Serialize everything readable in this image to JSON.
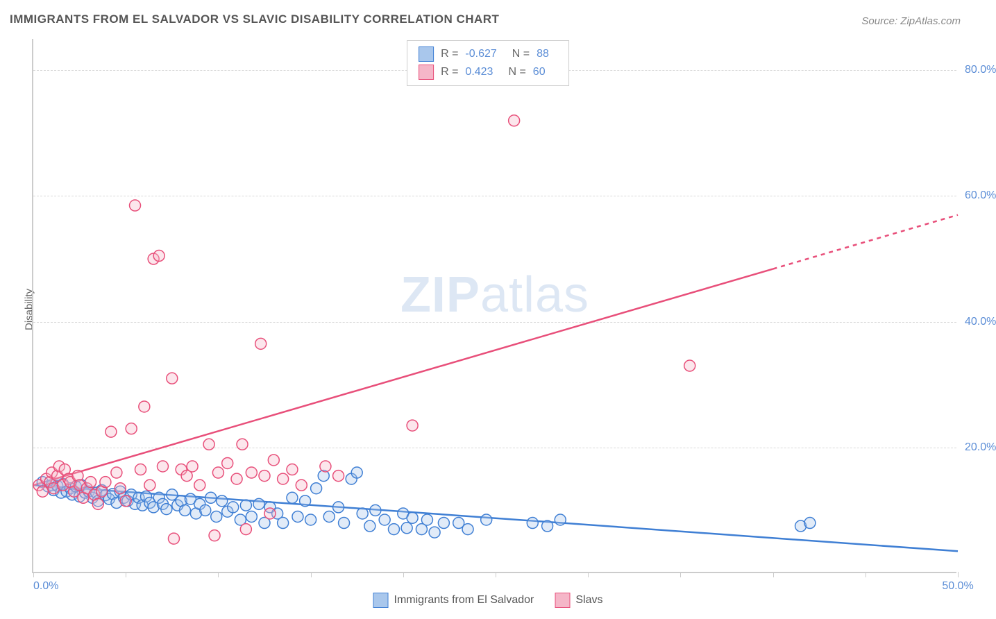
{
  "title": "IMMIGRANTS FROM EL SALVADOR VS SLAVIC DISABILITY CORRELATION CHART",
  "source_prefix": "Source: ",
  "source_name": "ZipAtlas.com",
  "watermark": {
    "bold": "ZIP",
    "rest": "atlas"
  },
  "y_axis_label": "Disability",
  "chart": {
    "type": "scatter",
    "background_color": "#ffffff",
    "grid_color": "#d8d8d8",
    "axis_color": "#cccccc",
    "tick_label_color": "#5b8dd6",
    "axis_label_color": "#666666",
    "title_color": "#555555",
    "xlim": [
      0,
      50
    ],
    "ylim": [
      0,
      85
    ],
    "y_ticks": [
      20,
      40,
      60,
      80
    ],
    "y_tick_labels": [
      "20.0%",
      "40.0%",
      "60.0%",
      "80.0%"
    ],
    "x_ticks": [
      0,
      5,
      10,
      15,
      20,
      25,
      30,
      35,
      40,
      45,
      50
    ],
    "x_tick_labels_shown": {
      "0": "0.0%",
      "50": "50.0%"
    },
    "marker_radius": 8,
    "marker_stroke_width": 1.5,
    "marker_fill_opacity": 0.35,
    "line_width": 2.5,
    "series": [
      {
        "name": "Immigrants from El Salvador",
        "color_stroke": "#3f7fd4",
        "color_fill": "#a9c7ec",
        "R": "-0.627",
        "N": "88",
        "trend": {
          "x1": 0,
          "y1": 14.0,
          "x2": 50,
          "y2": 3.5,
          "dashed_from_x": null
        },
        "points": [
          [
            0.5,
            14.5
          ],
          [
            0.8,
            13.8
          ],
          [
            1.0,
            14.0
          ],
          [
            1.1,
            13.2
          ],
          [
            1.3,
            13.9
          ],
          [
            1.5,
            12.8
          ],
          [
            1.6,
            14.2
          ],
          [
            1.8,
            13.0
          ],
          [
            2.0,
            13.5
          ],
          [
            2.1,
            12.5
          ],
          [
            2.3,
            13.8
          ],
          [
            2.5,
            12.2
          ],
          [
            2.6,
            14.0
          ],
          [
            2.8,
            12.8
          ],
          [
            3.0,
            13.0
          ],
          [
            3.2,
            12.0
          ],
          [
            3.4,
            12.8
          ],
          [
            3.5,
            11.5
          ],
          [
            3.7,
            13.2
          ],
          [
            3.9,
            12.4
          ],
          [
            4.1,
            11.8
          ],
          [
            4.3,
            12.6
          ],
          [
            4.5,
            11.2
          ],
          [
            4.7,
            13.0
          ],
          [
            4.9,
            12.0
          ],
          [
            5.1,
            11.5
          ],
          [
            5.3,
            12.5
          ],
          [
            5.5,
            11.0
          ],
          [
            5.7,
            12.0
          ],
          [
            5.9,
            10.8
          ],
          [
            6.1,
            12.2
          ],
          [
            6.3,
            11.2
          ],
          [
            6.5,
            10.5
          ],
          [
            6.8,
            12.0
          ],
          [
            7.0,
            11.0
          ],
          [
            7.2,
            10.2
          ],
          [
            7.5,
            12.5
          ],
          [
            7.8,
            10.8
          ],
          [
            8.0,
            11.5
          ],
          [
            8.2,
            10.0
          ],
          [
            8.5,
            11.8
          ],
          [
            8.8,
            9.5
          ],
          [
            9.0,
            11.0
          ],
          [
            9.3,
            10.0
          ],
          [
            9.6,
            12.0
          ],
          [
            9.9,
            9.0
          ],
          [
            10.2,
            11.5
          ],
          [
            10.5,
            9.8
          ],
          [
            10.8,
            10.5
          ],
          [
            11.2,
            8.5
          ],
          [
            11.5,
            10.8
          ],
          [
            11.8,
            9.0
          ],
          [
            12.2,
            11.0
          ],
          [
            12.5,
            8.0
          ],
          [
            12.8,
            10.5
          ],
          [
            13.2,
            9.5
          ],
          [
            13.5,
            8.0
          ],
          [
            14.0,
            12.0
          ],
          [
            14.3,
            9.0
          ],
          [
            14.7,
            11.5
          ],
          [
            15.0,
            8.5
          ],
          [
            15.3,
            13.5
          ],
          [
            15.7,
            15.5
          ],
          [
            16.0,
            9.0
          ],
          [
            16.5,
            10.5
          ],
          [
            16.8,
            8.0
          ],
          [
            17.2,
            15.0
          ],
          [
            17.5,
            16.0
          ],
          [
            17.8,
            9.5
          ],
          [
            18.2,
            7.5
          ],
          [
            18.5,
            10.0
          ],
          [
            19.0,
            8.5
          ],
          [
            19.5,
            7.0
          ],
          [
            20.0,
            9.5
          ],
          [
            20.2,
            7.2
          ],
          [
            20.5,
            8.8
          ],
          [
            21.0,
            7.0
          ],
          [
            21.3,
            8.5
          ],
          [
            21.7,
            6.5
          ],
          [
            22.2,
            8.0
          ],
          [
            23.0,
            8.0
          ],
          [
            23.5,
            7.0
          ],
          [
            24.5,
            8.5
          ],
          [
            27.0,
            8.0
          ],
          [
            27.8,
            7.5
          ],
          [
            28.5,
            8.5
          ],
          [
            41.5,
            7.5
          ],
          [
            42.0,
            8.0
          ]
        ]
      },
      {
        "name": "Slavs",
        "color_stroke": "#e84f7a",
        "color_fill": "#f5b6c8",
        "R": "0.423",
        "N": "60",
        "trend": {
          "x1": 0,
          "y1": 14.0,
          "x2": 50,
          "y2": 57.0,
          "dashed_from_x": 40
        },
        "points": [
          [
            0.3,
            14.0
          ],
          [
            0.5,
            13.0
          ],
          [
            0.7,
            15.0
          ],
          [
            0.9,
            14.5
          ],
          [
            1.0,
            16.0
          ],
          [
            1.1,
            13.5
          ],
          [
            1.3,
            15.5
          ],
          [
            1.4,
            17.0
          ],
          [
            1.6,
            14.0
          ],
          [
            1.7,
            16.5
          ],
          [
            1.9,
            15.0
          ],
          [
            2.0,
            14.5
          ],
          [
            2.2,
            13.0
          ],
          [
            2.4,
            15.5
          ],
          [
            2.5,
            14.0
          ],
          [
            2.7,
            12.0
          ],
          [
            2.9,
            13.5
          ],
          [
            3.1,
            14.5
          ],
          [
            3.3,
            12.5
          ],
          [
            3.5,
            11.0
          ],
          [
            3.7,
            13.0
          ],
          [
            3.9,
            14.5
          ],
          [
            4.2,
            22.5
          ],
          [
            4.5,
            16.0
          ],
          [
            4.7,
            13.5
          ],
          [
            5.0,
            11.5
          ],
          [
            5.3,
            23.0
          ],
          [
            5.5,
            58.5
          ],
          [
            5.8,
            16.5
          ],
          [
            6.0,
            26.5
          ],
          [
            6.3,
            14.0
          ],
          [
            6.5,
            50.0
          ],
          [
            6.8,
            50.5
          ],
          [
            7.0,
            17.0
          ],
          [
            7.5,
            31.0
          ],
          [
            7.6,
            5.5
          ],
          [
            8.0,
            16.5
          ],
          [
            8.3,
            15.5
          ],
          [
            8.6,
            17.0
          ],
          [
            9.0,
            14.0
          ],
          [
            9.5,
            20.5
          ],
          [
            10.0,
            16.0
          ],
          [
            10.5,
            17.5
          ],
          [
            11.0,
            15.0
          ],
          [
            11.3,
            20.5
          ],
          [
            11.8,
            16.0
          ],
          [
            12.3,
            36.5
          ],
          [
            12.5,
            15.5
          ],
          [
            12.8,
            9.5
          ],
          [
            13.0,
            18.0
          ],
          [
            13.5,
            15.0
          ],
          [
            14.0,
            16.5
          ],
          [
            14.5,
            14.0
          ],
          [
            15.8,
            17.0
          ],
          [
            16.5,
            15.5
          ],
          [
            20.5,
            23.5
          ],
          [
            26.0,
            72.0
          ],
          [
            35.5,
            33.0
          ],
          [
            9.8,
            6.0
          ],
          [
            11.5,
            7.0
          ]
        ]
      }
    ]
  },
  "legend_bottom": [
    {
      "label": "Immigrants from El Salvador",
      "series": 0
    },
    {
      "label": "Slavs",
      "series": 1
    }
  ]
}
